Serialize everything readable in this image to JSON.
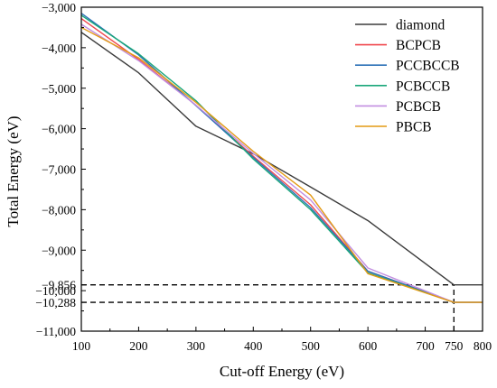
{
  "chart_data": {
    "type": "line",
    "xlabel": "Cut-off Energy (eV)",
    "ylabel": "Total Energy (eV)",
    "xlim": [
      100,
      800
    ],
    "ylim": [
      -11000,
      -3000
    ],
    "xticks": [
      100,
      200,
      300,
      400,
      500,
      600,
      700,
      750,
      800
    ],
    "yticks": [
      {
        "value": -3000,
        "label": "−3,000"
      },
      {
        "value": -4000,
        "label": "−4,000"
      },
      {
        "value": -5000,
        "label": "−5,000"
      },
      {
        "value": -6000,
        "label": "−6,000"
      },
      {
        "value": -7000,
        "label": "−7,000"
      },
      {
        "value": -8000,
        "label": "−8,000"
      },
      {
        "value": -9000,
        "label": "−9,000"
      },
      {
        "value": -9856,
        "label": "−9,856"
      },
      {
        "value": -10000,
        "label": "−10,000"
      },
      {
        "value": -10288,
        "label": "−10,288"
      },
      {
        "value": -11000,
        "label": "−11,000"
      }
    ],
    "reference_lines": [
      {
        "y": -9856,
        "x_end": 750,
        "style": "dashed"
      },
      {
        "y": -10288,
        "x_end": 750,
        "style": "dashed"
      },
      {
        "x": 750,
        "y_from": -11000,
        "y_to": -9856,
        "style": "dashed"
      }
    ],
    "legend_position": "top-right",
    "grid": false,
    "series": [
      {
        "name": "diamond",
        "color": "#3b3b3b",
        "x": [
          100,
          200,
          300,
          400,
          500,
          600,
          750,
          800
        ],
        "y": [
          -3620,
          -4620,
          -5940,
          -6620,
          -7440,
          -8270,
          -9856,
          -9856
        ]
      },
      {
        "name": "BCPCB",
        "color": "#f0484e",
        "x": [
          100,
          200,
          300,
          400,
          500,
          600,
          750,
          800
        ],
        "y": [
          -3280,
          -4290,
          -5420,
          -6680,
          -7880,
          -9520,
          -10288,
          -10288
        ]
      },
      {
        "name": "PCCBCCB",
        "color": "#2d72b8",
        "x": [
          100,
          200,
          300,
          400,
          500,
          600,
          750,
          800
        ],
        "y": [
          -3150,
          -4180,
          -5430,
          -6710,
          -7950,
          -9520,
          -10288,
          -10288
        ]
      },
      {
        "name": "PCBCCB",
        "color": "#1aa67a",
        "x": [
          100,
          200,
          300,
          400,
          500,
          600,
          750,
          800
        ],
        "y": [
          -3200,
          -4150,
          -5310,
          -6750,
          -8000,
          -9560,
          -10288,
          -10288
        ]
      },
      {
        "name": "PCBCB",
        "color": "#c28ee0",
        "x": [
          100,
          200,
          300,
          400,
          500,
          600,
          750,
          800
        ],
        "y": [
          -3420,
          -4320,
          -5420,
          -6610,
          -7760,
          -9440,
          -10288,
          -10288
        ]
      },
      {
        "name": "PBCB",
        "color": "#e39a14",
        "x": [
          100,
          200,
          300,
          400,
          500,
          600,
          750,
          800
        ],
        "y": [
          -3500,
          -4250,
          -5350,
          -6560,
          -7640,
          -9580,
          -10288,
          -10288
        ]
      }
    ]
  }
}
